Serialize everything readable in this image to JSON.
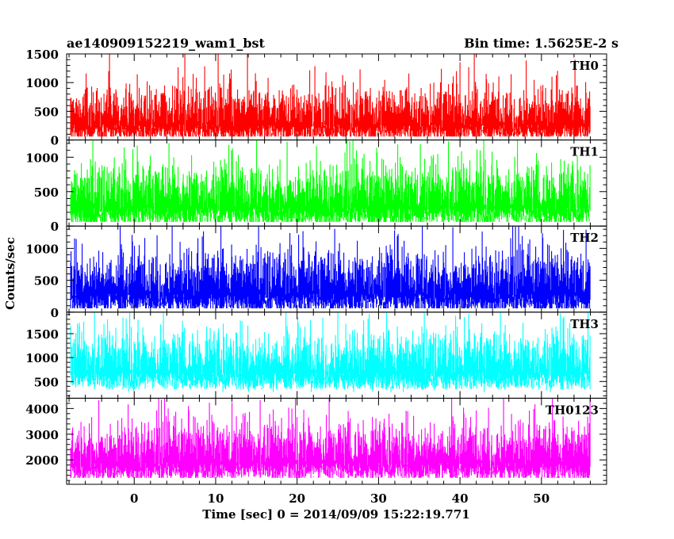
{
  "chart_data": {
    "type": "line",
    "title_left": "ae140909152219_wam1_bst",
    "title_right": "Bin time: 1.5625E-2 s",
    "xlabel": "Time [sec] 0 = 2014/09/09 15:22:19.771",
    "ylabel": "Counts/sec",
    "xlim": [
      -8.3,
      58
    ],
    "x_data_range": [
      -7.8,
      56
    ],
    "x_ticks": [
      0,
      10,
      20,
      30,
      40,
      50
    ],
    "grid": false,
    "panels": [
      {
        "name": "TH0",
        "color": "#ff0000",
        "ylim": [
          0,
          1500
        ],
        "y_ticks": [
          0,
          500,
          1000,
          1500
        ],
        "baseline": 500,
        "spread": 230,
        "floor": 60,
        "ceiling": 1500
      },
      {
        "name": "TH1",
        "color": "#00ff00",
        "ylim": [
          0,
          1250
        ],
        "y_ticks": [
          0,
          500,
          1000
        ],
        "baseline": 490,
        "spread": 220,
        "floor": 60,
        "ceiling": 1250
      },
      {
        "name": "TH2",
        "color": "#0000ff",
        "ylim": [
          0,
          1350
        ],
        "y_ticks": [
          0,
          500,
          1000
        ],
        "baseline": 530,
        "spread": 240,
        "floor": 60,
        "ceiling": 1350
      },
      {
        "name": "TH3",
        "color": "#00ffff",
        "ylim": [
          150,
          1950
        ],
        "y_ticks": [
          500,
          1000,
          1500
        ],
        "baseline": 990,
        "spread": 300,
        "floor": 280,
        "ceiling": 1950
      },
      {
        "name": "TH0123",
        "color": "#ff00ff",
        "ylim": [
          1050,
          4400
        ],
        "y_ticks": [
          2000,
          3000,
          4000
        ],
        "baseline": 2450,
        "spread": 560,
        "floor": 1300,
        "ceiling": 4400
      }
    ]
  }
}
